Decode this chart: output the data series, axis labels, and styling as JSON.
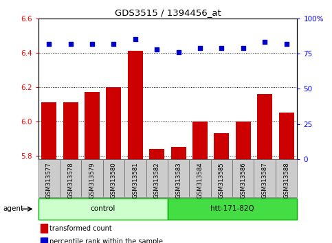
{
  "title": "GDS3515 / 1394456_at",
  "samples": [
    "GSM313577",
    "GSM313578",
    "GSM313579",
    "GSM313580",
    "GSM313581",
    "GSM313582",
    "GSM313583",
    "GSM313584",
    "GSM313585",
    "GSM313586",
    "GSM313587",
    "GSM313588"
  ],
  "red_values": [
    6.11,
    6.11,
    6.17,
    6.2,
    6.41,
    5.84,
    5.85,
    6.0,
    5.93,
    6.0,
    6.16,
    6.05
  ],
  "blue_percentile": [
    82,
    82,
    82,
    82,
    85,
    78,
    76,
    79,
    79,
    79,
    83,
    82
  ],
  "ylim_left": [
    5.78,
    6.6
  ],
  "ylim_right": [
    0,
    100
  ],
  "yticks_left": [
    5.8,
    6.0,
    6.2,
    6.4,
    6.6
  ],
  "yticks_right": [
    0,
    25,
    50,
    75,
    100
  ],
  "bar_color": "#cc0000",
  "dot_color": "#0000cc",
  "bar_bottom": 5.78,
  "control_label": "control",
  "treatment_label": "htt-171-82Q",
  "agent_label": "agent",
  "legend_red": "transformed count",
  "legend_blue": "percentile rank within the sample",
  "control_color": "#ccffcc",
  "treatment_color": "#44dd44",
  "bg_color": "#ffffff",
  "sample_bg": "#cccccc"
}
